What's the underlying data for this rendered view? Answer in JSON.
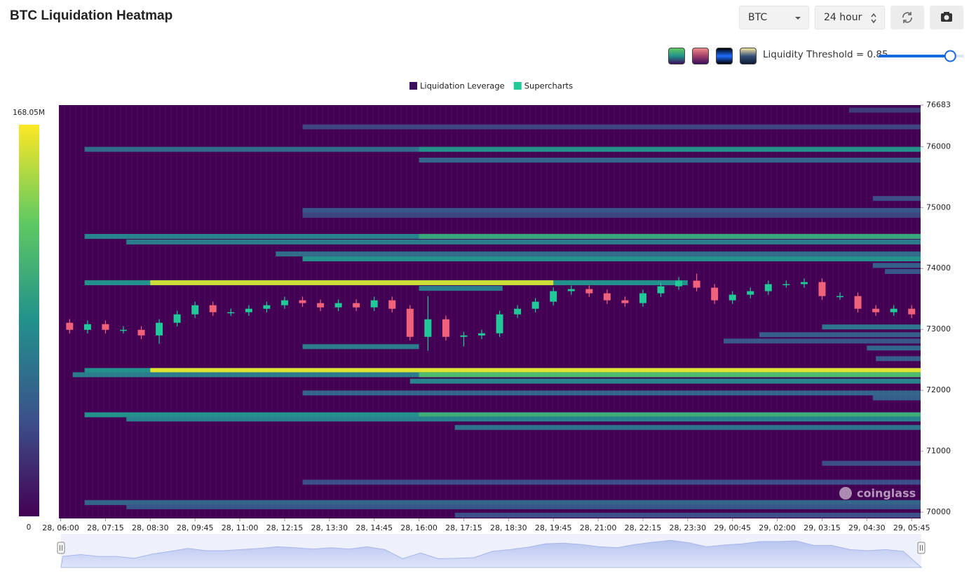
{
  "chart_data": {
    "type": "liquidation-heatmap",
    "title": "BTC Liquidation Heatmap",
    "controls": {
      "symbol": "BTC",
      "range": "24 hour",
      "threshold_label": "Liquidity Threshold =",
      "threshold": 0.85,
      "threshold_range": [
        0,
        1
      ]
    },
    "legend": [
      {
        "name": "Liquidation Leverage",
        "color": "#3b0f5c"
      },
      {
        "name": "Supercharts",
        "color": "#20c997"
      }
    ],
    "watermark": "coinglass",
    "colorscale": [
      "#440154",
      "#3b528b",
      "#21918c",
      "#5ec962",
      "#fde725"
    ],
    "colorbar": {
      "min": 0,
      "max": {
        "value": 168050000,
        "label": "168.05M"
      }
    },
    "ylim": [
      69896,
      76683
    ],
    "yticks": [
      70000,
      71000,
      72000,
      73000,
      74000,
      75000,
      76000,
      76683
    ],
    "xlim": [
      "28, 05:57",
      "29, 06:00"
    ],
    "xticks": [
      "28, 06:00",
      "28, 07:15",
      "28, 08:30",
      "28, 09:45",
      "28, 11:00",
      "28, 12:15",
      "28, 13:30",
      "28, 14:45",
      "28, 16:00",
      "28, 17:15",
      "28, 18:30",
      "28, 19:45",
      "28, 21:00",
      "28, 22:15",
      "28, 23:30",
      "29, 00:45",
      "29, 02:00",
      "29, 03:15",
      "29, 04:30",
      "29, 05:45"
    ],
    "bands": [
      {
        "price": 76600,
        "start": "29, 04:00",
        "end": "29, 06:00",
        "value": 30000000
      },
      {
        "price": 76325,
        "start": "28, 12:45",
        "end": "29, 06:00",
        "value": 35000000
      },
      {
        "price": 75957,
        "start": "28, 06:40",
        "end": "29, 06:00",
        "value": 60000000
      },
      {
        "price": 75957,
        "start": "28, 16:00",
        "end": "29, 06:00",
        "value": 85000000
      },
      {
        "price": 75780,
        "start": "28, 16:00",
        "end": "29, 06:00",
        "value": 55000000
      },
      {
        "price": 75150,
        "start": "29, 04:40",
        "end": "29, 06:00",
        "value": 40000000
      },
      {
        "price": 74953,
        "start": "28, 12:45",
        "end": "29, 06:00",
        "value": 45000000
      },
      {
        "price": 74873,
        "start": "28, 12:45",
        "end": "29, 06:00",
        "value": 35000000
      },
      {
        "price": 74527,
        "start": "28, 06:40",
        "end": "29, 06:00",
        "value": 75000000
      },
      {
        "price": 74527,
        "start": "28, 16:00",
        "end": "29, 06:00",
        "value": 100000000
      },
      {
        "price": 74435,
        "start": "28, 07:50",
        "end": "29, 06:00",
        "value": 70000000
      },
      {
        "price": 74239,
        "start": "28, 12:00",
        "end": "29, 06:00",
        "value": 60000000
      },
      {
        "price": 74158,
        "start": "28, 12:45",
        "end": "29, 06:00",
        "value": 85000000
      },
      {
        "price": 74050,
        "start": "29, 04:40",
        "end": "29, 06:00",
        "value": 50000000
      },
      {
        "price": 73950,
        "start": "29, 05:00",
        "end": "29, 06:00",
        "value": 45000000
      },
      {
        "price": 73766,
        "start": "28, 06:40",
        "end": "28, 23:30",
        "value": 85000000
      },
      {
        "price": 73766,
        "start": "28, 08:30",
        "end": "28, 19:45",
        "value": 155000000
      },
      {
        "price": 73674,
        "start": "28, 16:00",
        "end": "28, 18:20",
        "value": 70000000
      },
      {
        "price": 73040,
        "start": "29, 03:15",
        "end": "29, 06:00",
        "value": 65000000
      },
      {
        "price": 72913,
        "start": "29, 01:30",
        "end": "29, 06:00",
        "value": 50000000
      },
      {
        "price": 72809,
        "start": "29, 00:30",
        "end": "29, 06:00",
        "value": 45000000
      },
      {
        "price": 72717,
        "start": "28, 12:45",
        "end": "28, 16:00",
        "value": 70000000
      },
      {
        "price": 72694,
        "start": "29, 04:30",
        "end": "29, 06:00",
        "value": 55000000
      },
      {
        "price": 72520,
        "start": "29, 04:45",
        "end": "29, 06:00",
        "value": 50000000
      },
      {
        "price": 72325,
        "start": "28, 06:40",
        "end": "29, 06:00",
        "value": 85000000
      },
      {
        "price": 72325,
        "start": "28, 08:30",
        "end": "29, 06:00",
        "value": 160000000
      },
      {
        "price": 72256,
        "start": "28, 06:20",
        "end": "29, 06:00",
        "value": 70000000
      },
      {
        "price": 72256,
        "start": "28, 16:00",
        "end": "29, 06:00",
        "value": 115000000
      },
      {
        "price": 72150,
        "start": "28, 15:45",
        "end": "29, 06:00",
        "value": 75000000
      },
      {
        "price": 71956,
        "start": "28, 12:45",
        "end": "29, 06:00",
        "value": 55000000
      },
      {
        "price": 71875,
        "start": "29, 04:40",
        "end": "29, 06:00",
        "value": 50000000
      },
      {
        "price": 71598,
        "start": "28, 06:40",
        "end": "29, 06:00",
        "value": 85000000
      },
      {
        "price": 71598,
        "start": "28, 16:00",
        "end": "29, 06:00",
        "value": 105000000
      },
      {
        "price": 71529,
        "start": "28, 07:50",
        "end": "29, 06:00",
        "value": 75000000
      },
      {
        "price": 71390,
        "start": "28, 17:00",
        "end": "29, 06:00",
        "value": 65000000
      },
      {
        "price": 70802,
        "start": "29, 03:15",
        "end": "29, 06:00",
        "value": 40000000
      },
      {
        "price": 70491,
        "start": "28, 12:45",
        "end": "29, 06:00",
        "value": 40000000
      },
      {
        "price": 70157,
        "start": "28, 06:40",
        "end": "29, 06:00",
        "value": 55000000
      },
      {
        "price": 70088,
        "start": "28, 07:50",
        "end": "29, 06:00",
        "value": 45000000
      },
      {
        "price": 69950,
        "start": "28, 17:00",
        "end": "29, 06:00",
        "value": 40000000
      }
    ],
    "candles": {
      "up_color": "#20c997",
      "down_color": "#f0627a",
      "x": [
        "28, 06:00",
        "28, 06:30",
        "28, 07:00",
        "28, 07:30",
        "28, 08:00",
        "28, 08:30",
        "28, 09:00",
        "28, 09:30",
        "28, 10:00",
        "28, 10:30",
        "28, 11:00",
        "28, 11:30",
        "28, 12:00",
        "28, 12:30",
        "28, 13:00",
        "28, 13:30",
        "28, 14:00",
        "28, 14:30",
        "28, 15:00",
        "28, 15:30",
        "28, 16:00",
        "28, 16:30",
        "28, 17:00",
        "28, 17:30",
        "28, 18:00",
        "28, 18:30",
        "28, 19:00",
        "28, 19:30",
        "28, 20:00",
        "28, 20:30",
        "28, 21:00",
        "28, 21:30",
        "28, 22:00",
        "28, 22:30",
        "28, 23:00",
        "28, 23:30",
        "29, 00:00",
        "29, 00:30",
        "29, 01:00",
        "29, 01:30",
        "29, 02:00",
        "29, 02:30",
        "29, 03:00",
        "29, 03:30",
        "29, 04:00",
        "29, 04:30",
        "29, 05:00",
        "29, 05:30"
      ],
      "open": [
        73109,
        72993,
        73086,
        72993,
        72993,
        72901,
        73109,
        73247,
        73397,
        73282,
        73282,
        73339,
        73397,
        73478,
        73432,
        73362,
        73432,
        73362,
        73478,
        73339,
        72878,
        73166,
        72878,
        72901,
        72936,
        73247,
        73339,
        73455,
        73628,
        73662,
        73593,
        73478,
        73432,
        73593,
        73708,
        73800,
        73685,
        73478,
        73570,
        73628,
        73743,
        73743,
        73777,
        73547,
        73547,
        73339,
        73282,
        73339
      ],
      "high": [
        73169,
        73146,
        73146,
        73053,
        73053,
        73169,
        73307,
        73457,
        73457,
        73342,
        73399,
        73457,
        73538,
        73538,
        73492,
        73492,
        73492,
        73538,
        73538,
        73399,
        73547,
        73226,
        72961,
        72996,
        73307,
        73399,
        73515,
        73688,
        73722,
        73722,
        73653,
        73538,
        73653,
        73768,
        73860,
        73916,
        73745,
        73630,
        73688,
        73803,
        73803,
        73837,
        73837,
        73607,
        73607,
        73399,
        73399,
        73399
      ],
      "low": [
        72933,
        72933,
        72933,
        72933,
        72841,
        72763,
        73049,
        73187,
        73222,
        73222,
        73222,
        73279,
        73337,
        73372,
        73302,
        73302,
        73302,
        73302,
        73279,
        72818,
        72648,
        72818,
        72720,
        72841,
        72876,
        73187,
        73279,
        73395,
        73568,
        73533,
        73418,
        73372,
        73372,
        73533,
        73648,
        73625,
        73418,
        73418,
        73510,
        73568,
        73683,
        73683,
        73487,
        73487,
        73279,
        73222,
        73222,
        73187
      ],
      "close": [
        72993,
        73086,
        72993,
        72993,
        72901,
        73109,
        73247,
        73397,
        73282,
        73282,
        73339,
        73397,
        73478,
        73432,
        73362,
        73432,
        73362,
        73478,
        73339,
        72878,
        73166,
        72878,
        72901,
        72936,
        73247,
        73339,
        73455,
        73628,
        73662,
        73593,
        73478,
        73432,
        73593,
        73708,
        73800,
        73685,
        73478,
        73570,
        73628,
        73743,
        73743,
        73777,
        73547,
        73547,
        73339,
        73282,
        73339,
        73247
      ]
    }
  }
}
